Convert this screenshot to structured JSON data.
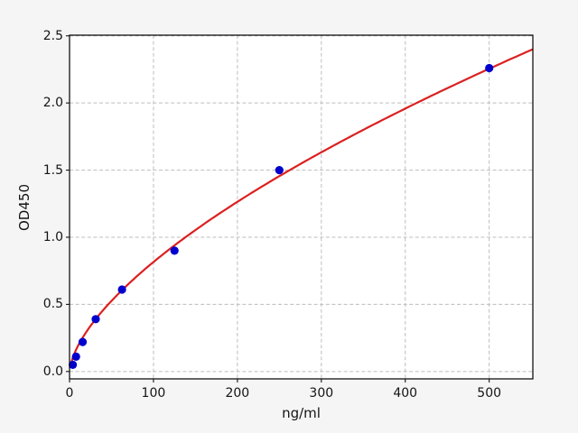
{
  "figure": {
    "background_color": "#f5f5f5",
    "plot_background_color": "#ffffff",
    "grid_color": "#bdbdbd",
    "spine_color": "#000000",
    "text_color": "#141414"
  },
  "chart_data": {
    "type": "scatter",
    "title": "",
    "xlabel": "ng/ml",
    "ylabel": "OD450",
    "xlim": [
      0,
      552
    ],
    "ylim": [
      -0.055,
      2.505
    ],
    "grid": true,
    "legend": false,
    "xticks": [
      {
        "v": 0,
        "label": "0"
      },
      {
        "v": 100,
        "label": "100"
      },
      {
        "v": 200,
        "label": "200"
      },
      {
        "v": 300,
        "label": "300"
      },
      {
        "v": 400,
        "label": "400"
      },
      {
        "v": 500,
        "label": "500"
      }
    ],
    "yticks": [
      {
        "v": 0.0,
        "label": "0.0"
      },
      {
        "v": 0.5,
        "label": "0.5"
      },
      {
        "v": 1.0,
        "label": "1.0"
      },
      {
        "v": 1.5,
        "label": "1.5"
      },
      {
        "v": 2.0,
        "label": "2.0"
      },
      {
        "v": 2.5,
        "label": "2.5"
      }
    ],
    "series": [
      {
        "name": "standard-points",
        "type": "scatter",
        "color": "#0000cd",
        "marker_radius": 4.6,
        "x": [
          3.9,
          7.8,
          15.6,
          31.25,
          62.5,
          125,
          250,
          500
        ],
        "y": [
          0.05,
          0.11,
          0.22,
          0.39,
          0.61,
          0.9,
          1.5,
          2.26
        ]
      },
      {
        "name": "fit-curve",
        "type": "line",
        "color": "#dc2020",
        "model": "power",
        "a": 0.0444,
        "b": 0.632,
        "x_start": 0.8,
        "x_end": 551
      }
    ]
  }
}
